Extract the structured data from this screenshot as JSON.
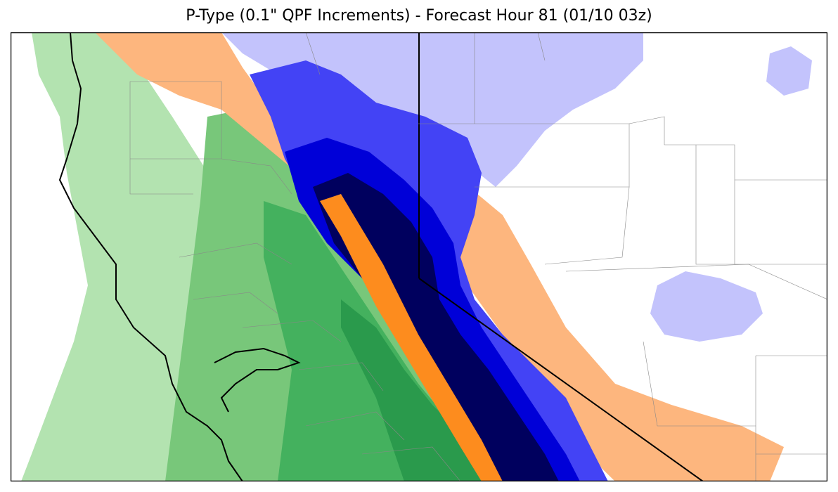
{
  "title": "P-Type (0.1\" QPF Increments) - Forecast Hour 81 (01/10 03z)",
  "colors": {
    "rain_light": "#b3e3b0",
    "rain_mod": "#78c77a",
    "rain_heavy": "#44b15e",
    "rain_vheavy": "#2a9a4c",
    "mix_light": "#fdb67e",
    "mix_mod": "#fd8c1e",
    "snow_light": "#c3c3fc",
    "snow_mod": "#4343f5",
    "snow_heavy": "#0000d8",
    "snow_vheavy": "#00005e",
    "border": "#000000",
    "county_line": "#888888"
  }
}
